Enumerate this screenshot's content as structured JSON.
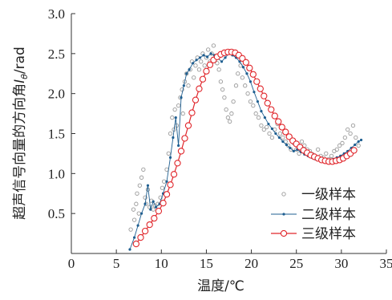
{
  "chart_data": {
    "type": "scatter",
    "xlabel": "温度/℃",
    "ylabel": "超声信号向量的方向角I_θ/rad",
    "xlim": [
      0,
      35
    ],
    "ylim": [
      0,
      3.0
    ],
    "xticks": [
      "0",
      "5",
      "10",
      "15",
      "20",
      "25",
      "30",
      "35"
    ],
    "yticks": [
      "0.5",
      "1.0",
      "1.5",
      "2.0",
      "2.5",
      "3.0"
    ],
    "legend_position": "bottom-right",
    "series": [
      {
        "name": "一级样本",
        "style": "hollow-circle-markers",
        "color": "#9a9a9a",
        "points": [
          [
            6.6,
            0.3
          ],
          [
            6.9,
            0.55
          ],
          [
            7.0,
            0.42
          ],
          [
            7.2,
            0.62
          ],
          [
            7.3,
            0.75
          ],
          [
            7.5,
            0.5
          ],
          [
            7.6,
            0.85
          ],
          [
            7.8,
            0.95
          ],
          [
            8.0,
            1.05
          ],
          [
            8.2,
            0.7
          ],
          [
            8.3,
            0.62
          ],
          [
            8.5,
            0.8
          ],
          [
            8.7,
            0.58
          ],
          [
            8.9,
            0.66
          ],
          [
            9.1,
            0.55
          ],
          [
            9.3,
            0.6
          ],
          [
            9.6,
            0.62
          ],
          [
            9.9,
            0.7
          ],
          [
            10.1,
            0.82
          ],
          [
            10.3,
            0.9
          ],
          [
            10.6,
            1.05
          ],
          [
            10.8,
            1.25
          ],
          [
            11.0,
            1.5
          ],
          [
            11.2,
            1.7
          ],
          [
            11.4,
            1.55
          ],
          [
            11.5,
            1.8
          ],
          [
            11.7,
            1.6
          ],
          [
            11.9,
            1.85
          ],
          [
            12.1,
            1.95
          ],
          [
            12.3,
            2.05
          ],
          [
            12.4,
            1.75
          ],
          [
            12.6,
            2.15
          ],
          [
            12.8,
            2.25
          ],
          [
            13.0,
            2.1
          ],
          [
            13.2,
            2.3
          ],
          [
            13.4,
            2.4
          ],
          [
            13.6,
            2.2
          ],
          [
            13.8,
            2.35
          ],
          [
            14.0,
            2.45
          ],
          [
            14.2,
            2.3
          ],
          [
            14.4,
            2.4
          ],
          [
            14.6,
            2.5
          ],
          [
            14.8,
            2.35
          ],
          [
            15.0,
            2.45
          ],
          [
            15.2,
            2.55
          ],
          [
            15.4,
            2.4
          ],
          [
            15.6,
            2.5
          ],
          [
            15.8,
            2.6
          ],
          [
            16.0,
            2.45
          ],
          [
            16.2,
            2.38
          ],
          [
            16.4,
            2.3
          ],
          [
            16.6,
            2.15
          ],
          [
            16.8,
            2.05
          ],
          [
            17.0,
            1.95
          ],
          [
            17.2,
            1.8
          ],
          [
            17.4,
            1.7
          ],
          [
            17.6,
            1.65
          ],
          [
            17.8,
            1.75
          ],
          [
            18.0,
            1.9
          ],
          [
            18.3,
            2.1
          ],
          [
            18.5,
            2.25
          ],
          [
            18.8,
            2.35
          ],
          [
            19.0,
            2.2
          ],
          [
            19.3,
            2.1
          ],
          [
            19.6,
            2.0
          ],
          [
            19.9,
            1.9
          ],
          [
            20.2,
            1.85
          ],
          [
            20.5,
            1.75
          ],
          [
            20.8,
            1.7
          ],
          [
            21.1,
            1.6
          ],
          [
            21.4,
            1.55
          ],
          [
            21.7,
            1.58
          ],
          [
            22.0,
            1.5
          ],
          [
            22.3,
            1.45
          ],
          [
            22.6,
            1.55
          ],
          [
            22.9,
            1.62
          ],
          [
            23.2,
            1.5
          ],
          [
            23.5,
            1.45
          ],
          [
            23.8,
            1.4
          ],
          [
            24.1,
            1.35
          ],
          [
            24.4,
            1.3
          ],
          [
            24.7,
            1.38
          ],
          [
            25.0,
            1.3
          ],
          [
            25.3,
            1.25
          ],
          [
            25.6,
            1.4
          ],
          [
            25.9,
            1.35
          ],
          [
            26.2,
            1.3
          ],
          [
            26.5,
            1.28
          ],
          [
            26.8,
            1.24
          ],
          [
            27.1,
            1.2
          ],
          [
            27.4,
            1.3
          ],
          [
            27.7,
            1.22
          ],
          [
            28.0,
            1.2
          ],
          [
            28.3,
            1.25
          ],
          [
            28.6,
            1.18
          ],
          [
            28.9,
            1.22
          ],
          [
            29.2,
            1.28
          ],
          [
            29.5,
            1.3
          ],
          [
            29.8,
            1.35
          ],
          [
            30.1,
            1.38
          ],
          [
            30.4,
            1.45
          ],
          [
            30.7,
            1.55
          ],
          [
            31.0,
            1.5
          ],
          [
            31.3,
            1.6
          ],
          [
            31.6,
            1.45
          ],
          [
            31.9,
            1.35
          ]
        ]
      },
      {
        "name": "二级样本",
        "style": "thin-line-with-dot-markers",
        "color": "#1f5f91",
        "points": [
          [
            6.5,
            0.05
          ],
          [
            7.0,
            0.2
          ],
          [
            7.4,
            0.35
          ],
          [
            7.8,
            0.5
          ],
          [
            8.2,
            0.62
          ],
          [
            8.5,
            0.85
          ],
          [
            8.8,
            0.55
          ],
          [
            9.1,
            0.65
          ],
          [
            9.4,
            0.58
          ],
          [
            9.8,
            0.62
          ],
          [
            10.2,
            0.75
          ],
          [
            10.6,
            0.9
          ],
          [
            11.0,
            1.2
          ],
          [
            11.3,
            1.45
          ],
          [
            11.6,
            1.7
          ],
          [
            11.9,
            1.35
          ],
          [
            12.2,
            1.95
          ],
          [
            12.5,
            2.1
          ],
          [
            12.8,
            2.25
          ],
          [
            13.1,
            2.3
          ],
          [
            13.5,
            2.38
          ],
          [
            13.9,
            2.42
          ],
          [
            14.3,
            2.45
          ],
          [
            14.7,
            2.48
          ],
          [
            15.1,
            2.46
          ],
          [
            15.5,
            2.5
          ],
          [
            15.9,
            2.48
          ],
          [
            16.3,
            2.44
          ],
          [
            16.7,
            2.4
          ],
          [
            17.1,
            2.45
          ],
          [
            17.5,
            2.5
          ],
          [
            17.9,
            2.48
          ],
          [
            18.3,
            2.45
          ],
          [
            18.7,
            2.4
          ],
          [
            19.1,
            2.33
          ],
          [
            19.5,
            2.25
          ],
          [
            19.9,
            2.15
          ],
          [
            20.3,
            2.02
          ],
          [
            20.7,
            1.9
          ],
          [
            21.1,
            1.78
          ],
          [
            21.5,
            1.7
          ],
          [
            21.9,
            1.62
          ],
          [
            22.3,
            1.56
          ],
          [
            22.7,
            1.5
          ],
          [
            23.1,
            1.45
          ],
          [
            23.5,
            1.4
          ],
          [
            23.9,
            1.36
          ],
          [
            24.3,
            1.32
          ],
          [
            24.7,
            1.28
          ],
          [
            25.1,
            1.3
          ],
          [
            25.5,
            1.27
          ],
          [
            25.9,
            1.24
          ],
          [
            26.3,
            1.22
          ],
          [
            26.7,
            1.2
          ],
          [
            27.1,
            1.18
          ],
          [
            27.5,
            1.17
          ],
          [
            27.9,
            1.16
          ],
          [
            28.3,
            1.17
          ],
          [
            28.7,
            1.16
          ],
          [
            29.1,
            1.18
          ],
          [
            29.5,
            1.2
          ],
          [
            29.9,
            1.22
          ],
          [
            30.3,
            1.25
          ],
          [
            30.7,
            1.28
          ],
          [
            31.1,
            1.32
          ],
          [
            31.5,
            1.36
          ],
          [
            31.9,
            1.4
          ],
          [
            32.2,
            1.42
          ]
        ]
      },
      {
        "name": "三级样本",
        "style": "line-with-hollow-circle-markers",
        "color": "#e0262b",
        "points": [
          [
            7.2,
            0.12
          ],
          [
            7.7,
            0.2
          ],
          [
            8.2,
            0.28
          ],
          [
            8.7,
            0.36
          ],
          [
            9.2,
            0.44
          ],
          [
            9.7,
            0.53
          ],
          [
            10.2,
            0.63
          ],
          [
            10.6,
            0.74
          ],
          [
            11.0,
            0.86
          ],
          [
            11.4,
            0.99
          ],
          [
            11.8,
            1.13
          ],
          [
            12.2,
            1.28
          ],
          [
            12.6,
            1.44
          ],
          [
            13.0,
            1.6
          ],
          [
            13.4,
            1.76
          ],
          [
            13.8,
            1.92
          ],
          [
            14.2,
            2.06
          ],
          [
            14.6,
            2.18
          ],
          [
            15.0,
            2.28
          ],
          [
            15.4,
            2.36
          ],
          [
            15.8,
            2.42
          ],
          [
            16.2,
            2.46
          ],
          [
            16.6,
            2.49
          ],
          [
            17.0,
            2.51
          ],
          [
            17.4,
            2.52
          ],
          [
            17.8,
            2.52
          ],
          [
            18.2,
            2.51
          ],
          [
            18.6,
            2.48
          ],
          [
            19.0,
            2.44
          ],
          [
            19.4,
            2.39
          ],
          [
            19.8,
            2.32
          ],
          [
            20.2,
            2.24
          ],
          [
            20.6,
            2.15
          ],
          [
            21.0,
            2.06
          ],
          [
            21.4,
            1.97
          ],
          [
            21.8,
            1.88
          ],
          [
            22.2,
            1.8
          ],
          [
            22.6,
            1.72
          ],
          [
            23.0,
            1.65
          ],
          [
            23.4,
            1.58
          ],
          [
            23.8,
            1.52
          ],
          [
            24.2,
            1.46
          ],
          [
            24.6,
            1.41
          ],
          [
            25.0,
            1.37
          ],
          [
            25.4,
            1.33
          ],
          [
            25.8,
            1.29
          ],
          [
            26.2,
            1.26
          ],
          [
            26.6,
            1.23
          ],
          [
            27.0,
            1.21
          ],
          [
            27.4,
            1.19
          ],
          [
            27.8,
            1.17
          ],
          [
            28.2,
            1.16
          ],
          [
            28.6,
            1.15
          ],
          [
            29.0,
            1.15
          ],
          [
            29.4,
            1.16
          ],
          [
            29.8,
            1.17
          ],
          [
            30.2,
            1.19
          ],
          [
            30.6,
            1.22
          ],
          [
            31.0,
            1.25
          ],
          [
            31.4,
            1.29
          ]
        ]
      }
    ]
  }
}
